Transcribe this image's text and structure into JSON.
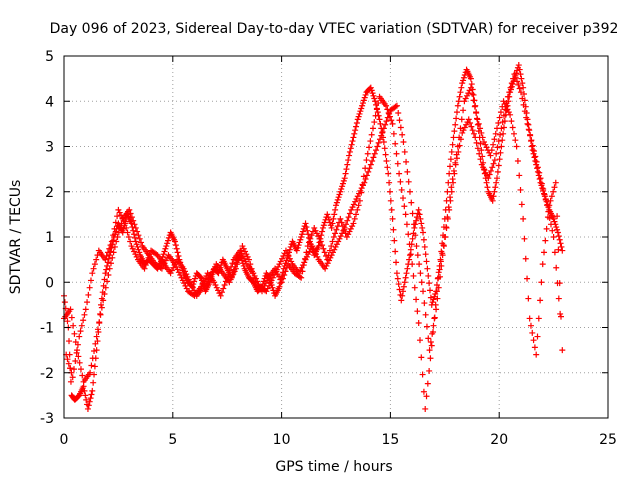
{
  "chart_data": {
    "type": "scatter",
    "title": "Day 096 of 2023, Sidereal Day-to-day VTEC variation (SDTVAR) for receiver p392",
    "xlabel": "GPS time / hours",
    "ylabel": "SDTVAR / TECUs",
    "xlim": [
      0,
      25
    ],
    "ylim": [
      -3,
      5
    ],
    "xticks": [
      0,
      5,
      10,
      15,
      20,
      25
    ],
    "yticks": [
      -3,
      -2,
      -1,
      0,
      1,
      2,
      3,
      4,
      5
    ],
    "grid": true,
    "marker": "+",
    "series": [
      {
        "name": "SDTVAR",
        "color": "#ff0000",
        "trace_x": [
          0.0,
          0.2,
          0.35,
          0.5,
          0.7,
          0.9,
          1.1,
          1.3,
          1.5,
          1.7,
          1.9,
          2.1,
          2.3,
          2.5,
          2.7,
          2.9,
          3.1,
          3.3,
          3.5,
          3.7,
          3.9,
          4.1,
          4.3,
          4.5,
          4.7,
          4.9,
          5.1,
          5.3,
          5.5,
          5.7,
          5.9,
          6.1,
          6.3,
          6.5,
          6.7,
          6.9,
          7.1,
          7.3,
          7.5,
          7.7,
          7.9,
          8.1,
          8.3,
          8.5,
          8.7,
          8.9,
          9.1,
          9.3,
          9.5,
          9.7,
          9.9,
          10.1,
          10.3,
          10.5,
          10.7,
          10.9,
          11.1,
          11.3,
          11.5,
          11.7,
          11.9,
          12.1,
          12.3,
          12.5,
          12.7,
          12.9,
          13.1,
          13.3,
          13.5,
          13.7,
          13.9,
          14.1,
          14.3,
          14.5,
          14.7,
          14.9,
          15.1,
          15.3,
          15.5,
          15.7,
          15.9,
          16.1,
          16.3,
          16.5,
          16.7,
          16.9,
          17.1,
          17.3,
          17.5,
          17.7,
          17.9,
          18.1,
          18.3,
          18.5,
          18.7,
          18.9,
          19.1,
          19.3,
          19.5,
          19.7,
          19.9,
          20.1,
          20.3,
          20.5,
          20.7,
          20.9,
          21.1,
          21.3,
          21.5,
          21.7,
          21.9,
          22.1,
          22.3,
          22.5,
          22.7,
          22.9
        ],
        "trace_y": [
          -0.3,
          -1.0,
          -2.5,
          -2.6,
          -2.5,
          -2.3,
          -2.8,
          -2.4,
          -1.5,
          -0.5,
          0.2,
          0.6,
          1.0,
          1.3,
          1.1,
          1.5,
          1.3,
          0.9,
          0.6,
          0.4,
          0.5,
          0.4,
          0.3,
          0.5,
          0.8,
          1.1,
          0.9,
          0.5,
          0.2,
          0.0,
          -0.1,
          0.2,
          0.1,
          -0.2,
          0.0,
          0.3,
          0.2,
          0.5,
          0.3,
          0.1,
          0.4,
          0.6,
          0.3,
          0.1,
          0.0,
          -0.2,
          -0.1,
          0.2,
          0.0,
          -0.3,
          -0.1,
          0.3,
          0.6,
          0.9,
          0.7,
          1.0,
          1.3,
          0.9,
          0.6,
          0.8,
          1.2,
          1.5,
          1.2,
          1.7,
          2.0,
          2.3,
          2.8,
          3.2,
          3.6,
          3.9,
          4.2,
          4.3,
          4.0,
          3.6,
          3.1,
          2.4,
          1.4,
          0.2,
          -0.4,
          0.1,
          0.6,
          1.2,
          1.6,
          1.1,
          0.3,
          -0.5,
          -0.2,
          0.5,
          1.4,
          2.4,
          3.2,
          3.9,
          4.4,
          4.7,
          4.5,
          3.9,
          3.2,
          2.5,
          2.0,
          1.8,
          2.3,
          3.0,
          3.7,
          4.2,
          4.5,
          4.8,
          4.3,
          3.6,
          3.0,
          2.6,
          2.2,
          1.9,
          1.6,
          1.4,
          1.1,
          0.7
        ],
        "trace2_x": [
          0.0,
          0.3,
          0.6,
          0.9,
          1.2,
          1.5,
          1.8,
          2.1,
          2.4,
          2.7,
          3.0,
          3.3,
          3.6,
          3.9,
          4.2,
          4.5,
          4.8,
          5.1,
          5.4,
          5.7,
          6.0,
          6.3,
          6.6,
          6.9,
          7.2,
          7.5,
          7.8,
          8.1,
          8.4,
          8.7,
          9.0,
          9.3,
          9.6,
          9.9,
          10.2,
          10.5,
          10.8,
          11.1,
          11.4,
          11.7,
          12.0,
          12.3,
          12.6,
          12.9,
          13.2,
          13.5,
          13.8,
          14.1,
          14.4,
          14.7,
          15.0,
          15.3,
          15.6,
          15.9,
          16.2,
          16.5,
          16.8,
          17.1,
          17.4,
          17.7,
          18.0,
          18.3,
          18.6,
          18.9,
          19.2,
          19.5,
          19.8,
          20.1,
          20.4,
          20.7,
          21.0,
          21.3,
          21.6,
          21.9,
          22.2,
          22.5,
          22.8
        ],
        "trace2_y": [
          -0.8,
          -0.6,
          -1.5,
          -2.2,
          -2.0,
          -1.2,
          -0.4,
          0.3,
          0.9,
          1.4,
          1.6,
          1.2,
          0.8,
          0.6,
          0.4,
          0.3,
          0.6,
          0.4,
          0.1,
          -0.2,
          -0.3,
          -0.1,
          0.2,
          0.0,
          -0.3,
          0.1,
          0.5,
          0.7,
          0.4,
          0.2,
          -0.1,
          -0.2,
          0.1,
          0.4,
          0.7,
          0.4,
          0.2,
          0.5,
          0.8,
          0.5,
          0.3,
          0.6,
          0.9,
          1.2,
          1.6,
          1.9,
          2.2,
          2.6,
          3.0,
          3.4,
          3.8,
          3.9,
          3.1,
          2.0,
          0.8,
          -0.2,
          -1.5,
          -0.6,
          0.6,
          1.6,
          2.6,
          3.3,
          3.6,
          3.2,
          2.6,
          2.3,
          2.7,
          3.4,
          4.1,
          4.6,
          4.2,
          3.5,
          2.9,
          2.3,
          1.7,
          1.0,
          -0.7
        ],
        "trace3_x": [
          0.1,
          0.4,
          0.7,
          1.0,
          1.3,
          1.6,
          1.9,
          2.2,
          2.5,
          2.8,
          3.1,
          3.4,
          3.7,
          4.0,
          4.3,
          4.6,
          4.9,
          5.2,
          5.5,
          5.8,
          6.1,
          6.4,
          6.7,
          7.0,
          7.3,
          7.6,
          7.9,
          8.2,
          8.5,
          8.8,
          9.1,
          9.4,
          9.7,
          10.0,
          10.3,
          10.6,
          10.9,
          11.2,
          11.5,
          11.8,
          12.1,
          12.4,
          12.7,
          13.0,
          13.3,
          13.6,
          13.9,
          14.2,
          14.5,
          14.8,
          15.1,
          15.4,
          15.7,
          16.0,
          16.3,
          16.6,
          16.9,
          17.2,
          17.5,
          17.8,
          18.1,
          18.4,
          18.7,
          19.0,
          19.3,
          19.6,
          19.9,
          20.2,
          20.5,
          20.8,
          21.1,
          21.4,
          21.7,
          22.0,
          22.3,
          22.6,
          22.9
        ],
        "trace3_y": [
          -1.6,
          -2.1,
          -1.2,
          -0.6,
          0.2,
          0.7,
          0.5,
          0.9,
          1.6,
          1.3,
          0.8,
          0.5,
          0.3,
          0.7,
          0.6,
          0.4,
          0.2,
          0.5,
          0.3,
          0.0,
          -0.3,
          -0.1,
          0.1,
          0.4,
          0.2,
          0.0,
          0.3,
          0.8,
          0.5,
          0.0,
          -0.2,
          0.1,
          0.3,
          0.0,
          0.4,
          0.2,
          0.1,
          0.8,
          1.2,
          0.9,
          0.5,
          1.0,
          1.4,
          1.0,
          1.3,
          1.8,
          2.7,
          3.4,
          4.1,
          3.9,
          3.5,
          2.4,
          1.5,
          0.4,
          -0.9,
          -2.8,
          -1.4,
          0.1,
          1.0,
          2.1,
          3.0,
          4.0,
          4.3,
          3.6,
          3.1,
          2.8,
          3.4,
          4.0,
          3.7,
          3.0,
          1.4,
          -0.8,
          -1.6,
          0.4,
          1.7,
          2.2,
          -1.5
        ]
      }
    ]
  }
}
